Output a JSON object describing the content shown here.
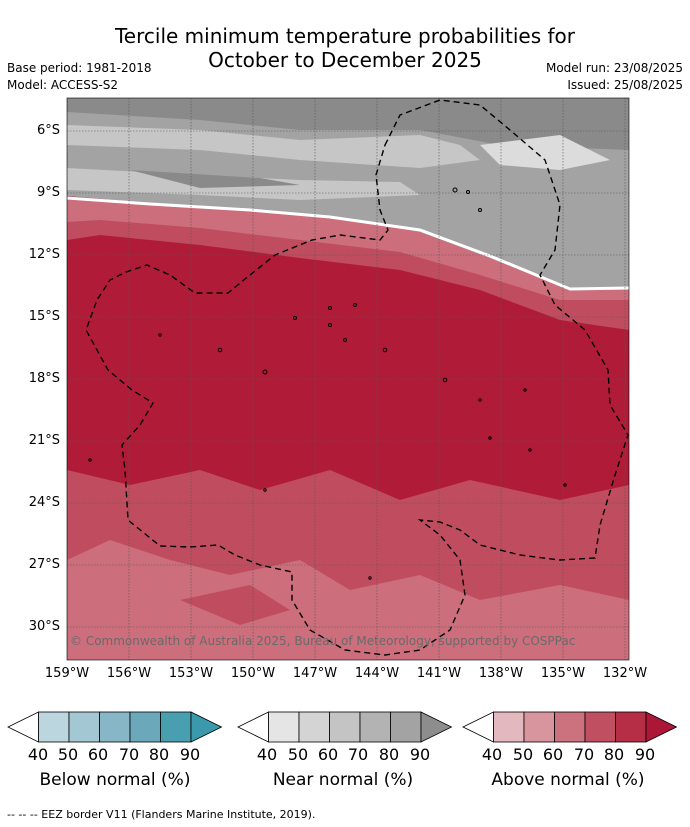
{
  "title": {
    "line1": "Tercile minimum temperature probabilities for",
    "line2": "October to December 2025"
  },
  "meta": {
    "base_period": "Base period: 1981-2018",
    "model": "Model: ACCESS-S2",
    "model_run": "Model run: 23/08/2025",
    "issued": "Issued: 25/08/2025"
  },
  "axes": {
    "lat_labels": [
      "6°S",
      "9°S",
      "12°S",
      "15°S",
      "18°S",
      "21°S",
      "24°S",
      "27°S",
      "30°S"
    ],
    "lon_labels": [
      "159°W",
      "156°W",
      "153°W",
      "150°W",
      "147°W",
      "144°W",
      "141°W",
      "138°W",
      "135°W",
      "132°W"
    ]
  },
  "map": {
    "copyright": "© Commonwealth of Australia 2025, Bureau of Meteorology, supported by COSPPac",
    "colors": {
      "near_dark": "#8a8a8a",
      "near_mid": "#a3a3a3",
      "near_light": "#c6c6c6",
      "above_60": "#cc6e7b",
      "above_70": "#c04d5f",
      "above_80": "#b01c38"
    }
  },
  "legends": [
    {
      "caption": "Below normal (%)",
      "ticks": [
        "40",
        "50",
        "60",
        "70",
        "80",
        "90"
      ],
      "colors": [
        "#bcd6df",
        "#a3c8d3",
        "#87b7c6",
        "#6aa8ba",
        "#489fb0",
        "#3a9aab"
      ]
    },
    {
      "caption": "Near normal (%)",
      "ticks": [
        "40",
        "50",
        "60",
        "70",
        "80",
        "90"
      ],
      "colors": [
        "#e5e5e5",
        "#d4d4d4",
        "#c4c4c4",
        "#b3b3b3",
        "#a3a3a3",
        "#8d8d8d"
      ]
    },
    {
      "caption": "Above normal (%)",
      "ticks": [
        "40",
        "50",
        "60",
        "70",
        "80",
        "90"
      ],
      "colors": [
        "#e3b8bf",
        "#d8959e",
        "#cc727f",
        "#c04f61",
        "#b52e45",
        "#ad1737"
      ]
    }
  ],
  "footer": {
    "eez": "--  --  -- EEZ border V11 (Flanders Marine Institute, 2019)."
  }
}
